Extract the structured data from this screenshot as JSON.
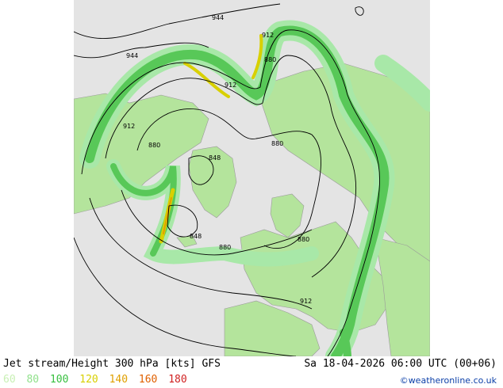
{
  "title": "Jet stream/Height 300 hPa [kts] GFS",
  "valid_time": "Sa 18-04-2026 06:00 UTC (00+06)",
  "credit": "©weatheronline.co.uk",
  "legend": [
    {
      "label": "60",
      "color": "#c8f0b4"
    },
    {
      "label": "80",
      "color": "#8fe08a"
    },
    {
      "label": "100",
      "color": "#38c040"
    },
    {
      "label": "120",
      "color": "#d8d000"
    },
    {
      "label": "140",
      "color": "#e0a000"
    },
    {
      "label": "160",
      "color": "#e06000"
    },
    {
      "label": "180",
      "color": "#d02020"
    }
  ],
  "contour_labels": [
    "944",
    "944",
    "912",
    "880",
    "912",
    "912",
    "880",
    "880",
    "848",
    "848",
    "880",
    "880",
    "912"
  ],
  "colors": {
    "ocean": "#e4e4e4",
    "land": "#b4e49c",
    "coast": "#a0a0a0",
    "jet_light": "#a8e8a8",
    "jet_mid": "#58c858",
    "jet_strong": "#d8d000",
    "jet_max": "#e0a000"
  }
}
